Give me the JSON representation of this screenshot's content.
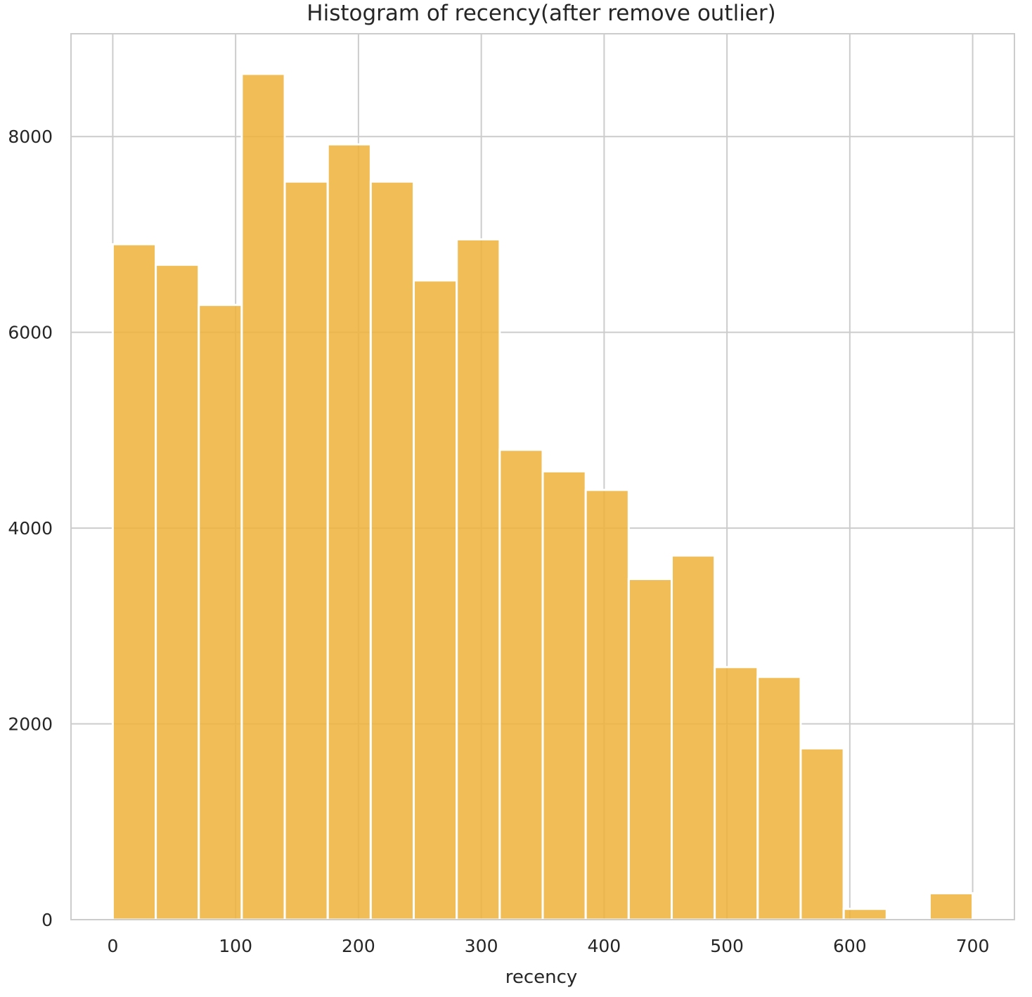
{
  "chart_data": {
    "type": "bar",
    "title": "Histogram of recency(after remove outlier)",
    "xlabel": "recency",
    "ylabel": "",
    "xlim": [
      -34,
      734
    ],
    "ylim": [
      0,
      9050
    ],
    "xticks": [
      0,
      100,
      200,
      300,
      400,
      500,
      600,
      700
    ],
    "xtick_labels": [
      "0",
      "100",
      "200",
      "300",
      "400",
      "500",
      "600",
      "700"
    ],
    "yticks": [
      0,
      2000,
      4000,
      6000,
      8000
    ],
    "ytick_labels": [
      "0",
      "2000",
      "4000",
      "6000",
      "8000"
    ],
    "grid": true,
    "legend": "none",
    "bar_color": "#EFB139",
    "bins": [
      {
        "x0": 0,
        "x1": 35,
        "count": 6900
      },
      {
        "x0": 35,
        "x1": 70,
        "count": 6690
      },
      {
        "x0": 70,
        "x1": 105,
        "count": 6280
      },
      {
        "x0": 105,
        "x1": 140,
        "count": 8640
      },
      {
        "x0": 140,
        "x1": 175,
        "count": 7540
      },
      {
        "x0": 175,
        "x1": 210,
        "count": 7920
      },
      {
        "x0": 210,
        "x1": 245,
        "count": 7540
      },
      {
        "x0": 245,
        "x1": 280,
        "count": 6530
      },
      {
        "x0": 280,
        "x1": 315,
        "count": 6950
      },
      {
        "x0": 315,
        "x1": 350,
        "count": 4800
      },
      {
        "x0": 350,
        "x1": 385,
        "count": 4580
      },
      {
        "x0": 385,
        "x1": 420,
        "count": 4390
      },
      {
        "x0": 420,
        "x1": 455,
        "count": 3480
      },
      {
        "x0": 455,
        "x1": 490,
        "count": 3720
      },
      {
        "x0": 490,
        "x1": 525,
        "count": 2580
      },
      {
        "x0": 525,
        "x1": 560,
        "count": 2480
      },
      {
        "x0": 560,
        "x1": 595,
        "count": 1750
      },
      {
        "x0": 595,
        "x1": 630,
        "count": 110
      },
      {
        "x0": 630,
        "x1": 665,
        "count": 0
      },
      {
        "x0": 665,
        "x1": 700,
        "count": 270
      }
    ]
  }
}
